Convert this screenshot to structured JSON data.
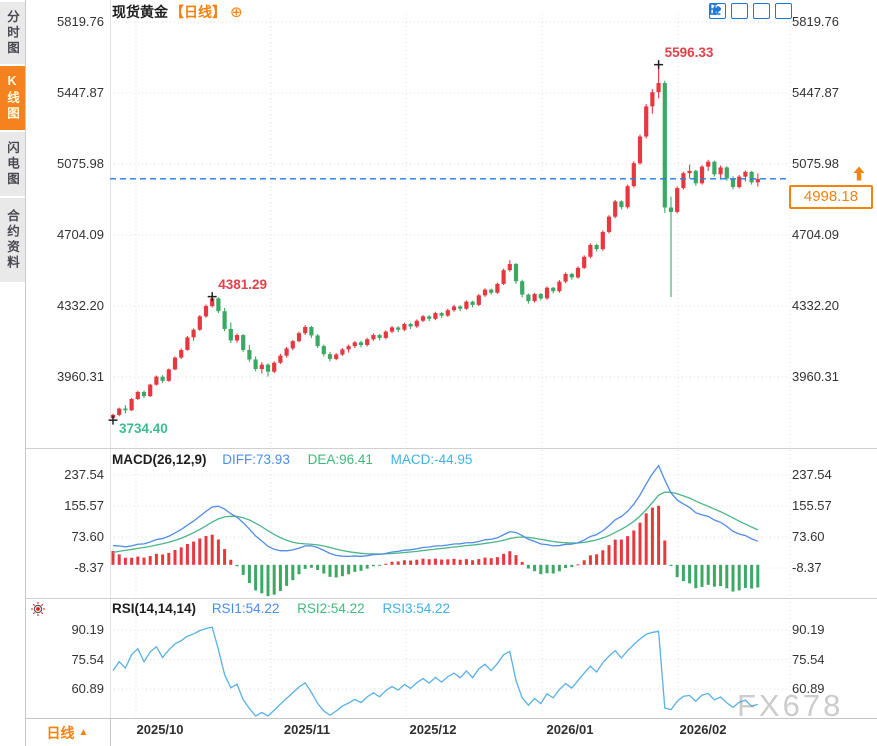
{
  "header": {
    "title": "现货黄金",
    "period_tag": "【日线】",
    "add_glyph": "⊕"
  },
  "sidebar": {
    "tabs": [
      {
        "label": "分时图",
        "active": false
      },
      {
        "label": "K线图",
        "active": true
      },
      {
        "label": "闪电图",
        "active": false
      },
      {
        "label": "合约资料",
        "active": false
      }
    ]
  },
  "toolbar": {
    "icons": [
      "move-crosshair",
      "axis-scale",
      "axis-playback",
      "exit-chart"
    ]
  },
  "bottom_bar": {
    "period": "日线",
    "caret": "▲"
  },
  "watermark": "FX678",
  "colors": {
    "up": "#e6393f",
    "down": "#3ba864",
    "accent_orange": "#f5820d",
    "accent_blue": "#1f7fe8",
    "diff_line": "#4f8ce8",
    "dea_line": "#4bb585",
    "rsi_line": "#58b1e8",
    "anno_red": "#e5404a",
    "anno_green": "#3dbd8e"
  },
  "chart_data": {
    "type": "candlestick",
    "title": "现货黄金【日线】",
    "x_labels": [
      "2025/10",
      "2025/11",
      "2025/12",
      "2026/01",
      "2026/02"
    ],
    "price_axis": {
      "tick_labels": [
        "5819.76",
        "5447.87",
        "5075.98",
        "4704.09",
        "4332.20",
        "3960.31"
      ]
    },
    "last_price_label": "4998.18",
    "markers": [
      {
        "index": 88,
        "type": "high",
        "label": "5596.33"
      },
      {
        "index": 16,
        "type": "high",
        "label": "4381.29"
      },
      {
        "index": 0,
        "type": "low",
        "label": "3734.40"
      }
    ],
    "candles": [
      [
        3745,
        3768,
        3734.4,
        3762
      ],
      [
        3762,
        3800,
        3755,
        3795
      ],
      [
        3795,
        3812,
        3770,
        3786
      ],
      [
        3786,
        3850,
        3782,
        3845
      ],
      [
        3845,
        3888,
        3840,
        3882
      ],
      [
        3882,
        3890,
        3850,
        3860
      ],
      [
        3860,
        3925,
        3856,
        3920
      ],
      [
        3920,
        3968,
        3915,
        3962
      ],
      [
        3962,
        3970,
        3928,
        3940
      ],
      [
        3940,
        4005,
        3936,
        4000
      ],
      [
        4000,
        4068,
        3996,
        4062
      ],
      [
        4062,
        4110,
        4054,
        4102
      ],
      [
        4102,
        4175,
        4098,
        4168
      ],
      [
        4168,
        4215,
        4150,
        4208
      ],
      [
        4208,
        4285,
        4202,
        4278
      ],
      [
        4278,
        4340,
        4270,
        4332
      ],
      [
        4332,
        4381.29,
        4324,
        4372
      ],
      [
        4372,
        4378,
        4295,
        4305
      ],
      [
        4305,
        4322,
        4200,
        4212
      ],
      [
        4212,
        4245,
        4138,
        4152
      ],
      [
        4152,
        4188,
        4140,
        4180
      ],
      [
        4180,
        4185,
        4092,
        4102
      ],
      [
        4102,
        4128,
        4040,
        4052
      ],
      [
        4052,
        4068,
        3990,
        4002
      ],
      [
        4002,
        4038,
        3978,
        4025
      ],
      [
        4025,
        4032,
        3962,
        3988
      ],
      [
        3988,
        4042,
        3980,
        4035
      ],
      [
        4035,
        4082,
        4028,
        4072
      ],
      [
        4072,
        4118,
        4062,
        4110
      ],
      [
        4110,
        4155,
        4100,
        4148
      ],
      [
        4148,
        4198,
        4142,
        4190
      ],
      [
        4190,
        4232,
        4180,
        4222
      ],
      [
        4222,
        4228,
        4165,
        4178
      ],
      [
        4178,
        4185,
        4112,
        4122
      ],
      [
        4122,
        4130,
        4068,
        4080
      ],
      [
        4080,
        4092,
        4042,
        4055
      ],
      [
        4055,
        4085,
        4048,
        4078
      ],
      [
        4078,
        4112,
        4070,
        4105
      ],
      [
        4105,
        4130,
        4088,
        4122
      ],
      [
        4122,
        4148,
        4112,
        4142
      ],
      [
        4142,
        4150,
        4115,
        4128
      ],
      [
        4128,
        4165,
        4120,
        4158
      ],
      [
        4158,
        4188,
        4150,
        4180
      ],
      [
        4180,
        4186,
        4152,
        4165
      ],
      [
        4165,
        4205,
        4158,
        4198
      ],
      [
        4198,
        4228,
        4190,
        4220
      ],
      [
        4220,
        4226,
        4195,
        4208
      ],
      [
        4208,
        4245,
        4200,
        4238
      ],
      [
        4238,
        4244,
        4212,
        4225
      ],
      [
        4225,
        4262,
        4218,
        4255
      ],
      [
        4255,
        4285,
        4248,
        4278
      ],
      [
        4278,
        4284,
        4252,
        4265
      ],
      [
        4265,
        4302,
        4258,
        4295
      ],
      [
        4295,
        4300,
        4270,
        4282
      ],
      [
        4282,
        4318,
        4275,
        4310
      ],
      [
        4310,
        4338,
        4302,
        4330
      ],
      [
        4330,
        4336,
        4305,
        4318
      ],
      [
        4318,
        4362,
        4312,
        4355
      ],
      [
        4355,
        4360,
        4325,
        4338
      ],
      [
        4338,
        4395,
        4332,
        4388
      ],
      [
        4388,
        4425,
        4380,
        4418
      ],
      [
        4418,
        4424,
        4392,
        4402
      ],
      [
        4402,
        4455,
        4396,
        4448
      ],
      [
        4448,
        4528,
        4442,
        4520
      ],
      [
        4520,
        4572,
        4512,
        4552
      ],
      [
        4552,
        4558,
        4448,
        4462
      ],
      [
        4462,
        4470,
        4378,
        4392
      ],
      [
        4392,
        4398,
        4345,
        4358
      ],
      [
        4358,
        4402,
        4350,
        4395
      ],
      [
        4395,
        4400,
        4362,
        4372
      ],
      [
        4372,
        4435,
        4365,
        4428
      ],
      [
        4428,
        4432,
        4398,
        4410
      ],
      [
        4410,
        4468,
        4402,
        4460
      ],
      [
        4460,
        4508,
        4452,
        4500
      ],
      [
        4500,
        4506,
        4470,
        4482
      ],
      [
        4482,
        4540,
        4475,
        4532
      ],
      [
        4532,
        4598,
        4525,
        4590
      ],
      [
        4590,
        4660,
        4582,
        4652
      ],
      [
        4652,
        4658,
        4618,
        4630
      ],
      [
        4630,
        4728,
        4622,
        4720
      ],
      [
        4720,
        4808,
        4712,
        4800
      ],
      [
        4800,
        4888,
        4792,
        4880
      ],
      [
        4880,
        4886,
        4838,
        4850
      ],
      [
        4850,
        4968,
        4842,
        4960
      ],
      [
        4960,
        5090,
        4952,
        5080
      ],
      [
        5080,
        5230,
        5072,
        5220
      ],
      [
        5220,
        5390,
        5210,
        5378
      ],
      [
        5378,
        5468,
        5340,
        5452
      ],
      [
        5452,
        5596.33,
        5420,
        5500
      ],
      [
        5500,
        5512,
        4820,
        4848
      ],
      [
        4848,
        4905,
        4380,
        4825
      ],
      [
        4825,
        4958,
        4818,
        4950
      ],
      [
        4950,
        5035,
        4942,
        5028
      ],
      [
        5028,
        5072,
        5000,
        5040
      ],
      [
        5040,
        5046,
        4962,
        4975
      ],
      [
        4975,
        5070,
        4968,
        5062
      ],
      [
        5062,
        5098,
        5040,
        5088
      ],
      [
        5088,
        5094,
        5010,
        5022
      ],
      [
        5022,
        5068,
        4998,
        5058
      ],
      [
        5058,
        5064,
        4988,
        5000
      ],
      [
        5000,
        5012,
        4942,
        4955
      ],
      [
        4955,
        5018,
        4948,
        5010
      ],
      [
        5010,
        5042,
        4985,
        5035
      ],
      [
        5035,
        5040,
        4968,
        4980
      ],
      [
        4980,
        5026,
        4958,
        4998.18
      ]
    ],
    "macd": {
      "label": "MACD(26,12,9)",
      "diff_label": "DIFF:73.93",
      "dea_label": "DEA:96.41",
      "macd_label": "MACD:-44.95",
      "params": [
        26,
        12,
        9
      ],
      "tick_labels": [
        "237.54",
        "155.57",
        "73.60",
        "-8.37"
      ]
    },
    "rsi": {
      "label": "RSI(14,14,14)",
      "rsi1_label": "RSI1:54.22",
      "rsi2_label": "RSI2:54.22",
      "rsi3_label": "RSI3:54.22",
      "params": [
        14,
        14,
        14
      ],
      "tick_labels": [
        "90.19",
        "75.54",
        "60.89"
      ]
    }
  }
}
